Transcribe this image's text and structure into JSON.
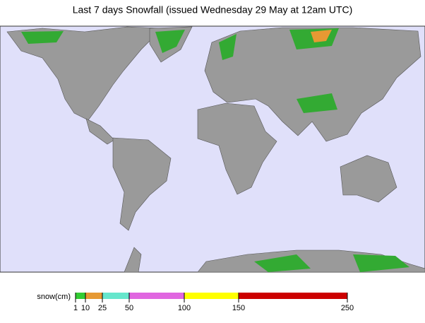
{
  "header": {
    "title": "Last 7 days Snowfall (issued Wednesday 29 May at 12am UTC)"
  },
  "legend": {
    "label": "snow(cm)",
    "ticks": [
      1,
      10,
      25,
      50,
      100,
      150,
      250
    ],
    "colors": [
      "#33cc33",
      "#e69933",
      "#66e6cc",
      "#e066e0",
      "#ffff00",
      "#cc0000"
    ]
  }
}
